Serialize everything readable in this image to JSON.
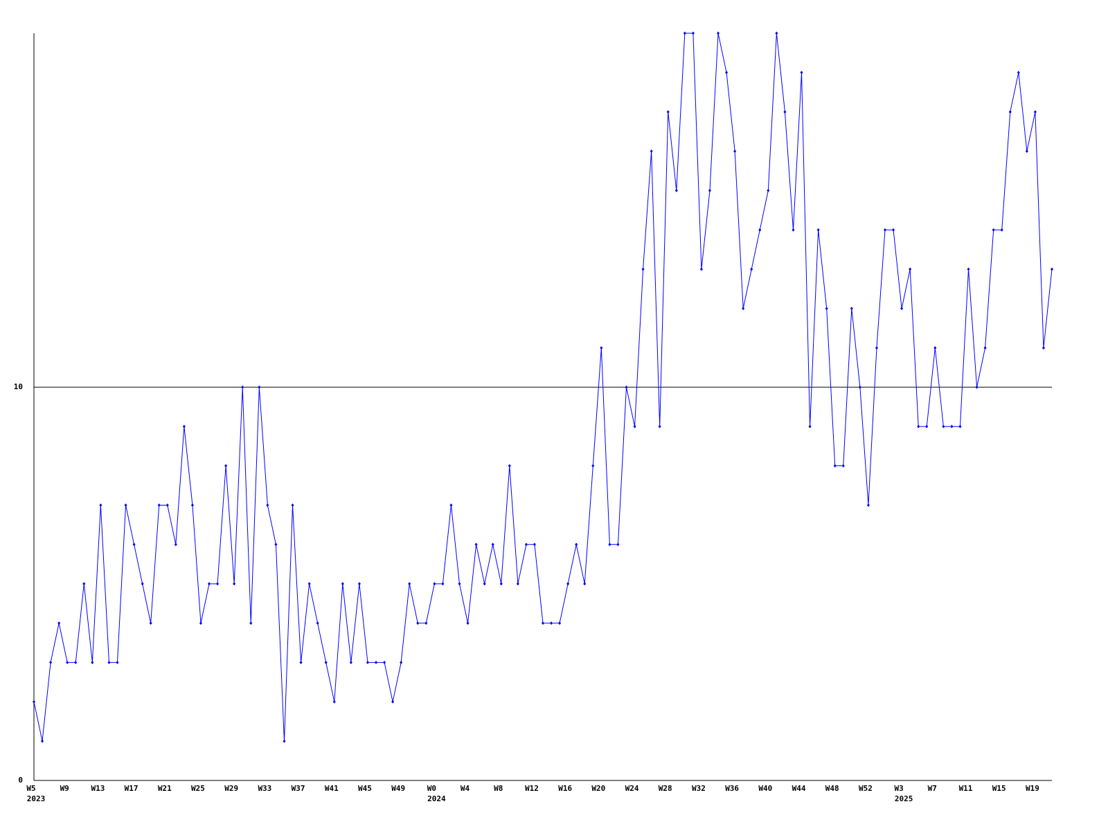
{
  "chart_data": {
    "type": "line",
    "categories": [
      "W5",
      null,
      null,
      null,
      "W9",
      null,
      null,
      null,
      "W13",
      null,
      null,
      null,
      "W17",
      null,
      null,
      null,
      "W21",
      null,
      null,
      null,
      "W25",
      null,
      null,
      null,
      "W29",
      null,
      null,
      null,
      "W33",
      null,
      null,
      null,
      "W37",
      null,
      null,
      null,
      "W41",
      null,
      null,
      null,
      "W45",
      null,
      null,
      null,
      "W49",
      null,
      null,
      null,
      "W0",
      null,
      null,
      null,
      "W4",
      null,
      null,
      null,
      "W8",
      null,
      null,
      null,
      "W12",
      null,
      null,
      null,
      "W16",
      null,
      null,
      null,
      "W20",
      null,
      null,
      null,
      "W24",
      null,
      null,
      null,
      "W28",
      null,
      null,
      null,
      "W32",
      null,
      null,
      null,
      "W36",
      null,
      null,
      null,
      "W40",
      null,
      null,
      null,
      "W44",
      null,
      null,
      null,
      "W48",
      null,
      null,
      null,
      "W52",
      null,
      null,
      null,
      "W3",
      null,
      null,
      null,
      "W7",
      null,
      null,
      null,
      "W11",
      null,
      null,
      null,
      "W15",
      null,
      null,
      null,
      "W19",
      null,
      null
    ],
    "year_labels": [
      {
        "label": "2023",
        "at": 0
      },
      {
        "label": "2024",
        "at": 48
      },
      {
        "label": "2025",
        "at": 104
      }
    ],
    "series": [
      {
        "color": "#0000ff",
        "values": [
          2,
          1,
          3,
          4,
          3,
          3,
          5,
          3,
          7,
          3,
          3,
          7,
          6,
          5,
          4,
          7,
          7,
          6,
          9,
          7,
          4,
          5,
          5,
          8,
          5,
          10,
          4,
          10,
          7,
          6,
          1,
          7,
          3,
          5,
          4,
          3,
          2,
          5,
          3,
          5,
          3,
          3,
          3,
          2,
          3,
          5,
          4,
          4,
          5,
          5,
          7,
          5,
          4,
          6,
          5,
          6,
          5,
          8,
          5,
          6,
          6,
          4,
          4,
          4,
          5,
          6,
          5,
          8,
          11,
          6,
          6,
          10,
          9,
          13,
          16,
          9,
          17,
          15,
          19,
          19,
          13,
          15,
          19,
          18,
          16,
          12,
          13,
          14,
          15,
          19,
          17,
          14,
          18,
          9,
          14,
          12,
          8,
          8,
          12,
          10,
          7,
          11,
          14,
          14,
          12,
          13,
          9,
          9,
          11,
          9,
          9,
          9,
          13,
          10,
          11,
          14,
          14,
          17,
          18,
          16,
          17,
          11,
          13
        ]
      }
    ],
    "ylim": [
      0,
      19
    ],
    "yticks": [
      0,
      10
    ],
    "grid": true
  }
}
